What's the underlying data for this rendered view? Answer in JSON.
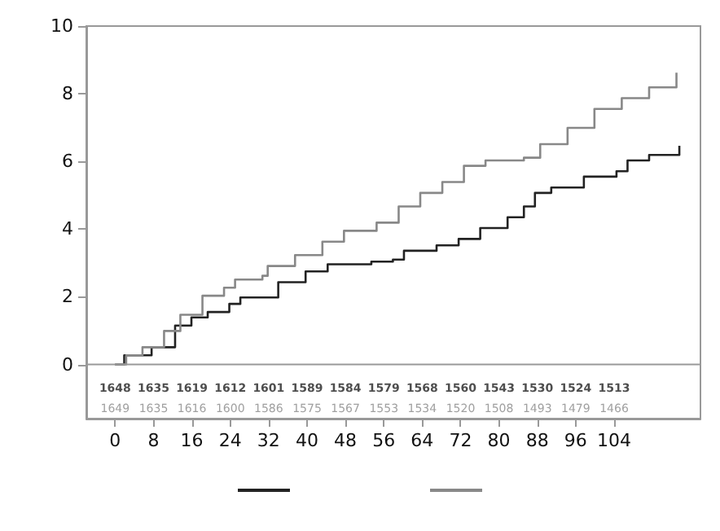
{
  "chart_data": {
    "type": "step",
    "xlim": [
      -6,
      122
    ],
    "xticks": [
      0,
      8,
      16,
      24,
      32,
      40,
      48,
      56,
      64,
      72,
      80,
      88,
      96,
      104
    ],
    "ylim": [
      -1.6,
      10
    ],
    "yticks": [
      0,
      2,
      4,
      6,
      8,
      10
    ],
    "marker": "none",
    "line_style": "solid",
    "ref_lines": [
      {
        "axis": "y",
        "value": 0,
        "color": "#999999"
      }
    ],
    "series": [
      {
        "color": "#222222",
        "x": [
          0,
          1.9,
          7.6,
          12.5,
          15.9,
          19.3,
          23.8,
          26.1,
          30.6,
          34.0,
          39.7,
          44.3,
          53.4,
          57.9,
          60.2,
          67.0,
          71.6,
          76.1,
          81.8,
          85.2,
          87.5,
          90.9,
          97.7,
          104.5,
          106.8,
          111.3,
          117.6
        ],
        "values": [
          0,
          0.27,
          0.51,
          1.15,
          1.39,
          1.55,
          1.79,
          1.98,
          1.98,
          2.43,
          2.75,
          2.96,
          3.04,
          3.1,
          3.36,
          3.52,
          3.71,
          4.03,
          4.35,
          4.67,
          5.07,
          5.23,
          5.55,
          5.71,
          6.03,
          6.19,
          6.46
        ]
      },
      {
        "color": "#888888",
        "x": [
          0,
          2.3,
          5.7,
          10.2,
          13.6,
          18.2,
          22.7,
          25.0,
          30.7,
          31.8,
          37.5,
          43.2,
          47.7,
          54.5,
          59.1,
          63.6,
          68.2,
          72.7,
          77.2,
          85.2,
          88.6,
          94.3,
          99.9,
          105.6,
          111.3,
          117.0
        ],
        "values": [
          0,
          0.27,
          0.51,
          0.99,
          1.47,
          2.03,
          2.27,
          2.51,
          2.62,
          2.91,
          3.23,
          3.63,
          3.95,
          4.19,
          4.67,
          5.07,
          5.39,
          5.87,
          6.03,
          6.11,
          6.51,
          6.99,
          7.55,
          7.87,
          8.19,
          8.62
        ]
      }
    ],
    "annotations": [
      "1648",
      "1635",
      "1619",
      "1612",
      "1601",
      "1589",
      "1584",
      "1579",
      "1568",
      "1560",
      "1543",
      "1530",
      "1524",
      "1513",
      "1649",
      "1635",
      "1616",
      "1600",
      "1586",
      "1575",
      "1567",
      "1553",
      "1534",
      "1520",
      "1508",
      "1493",
      "1479",
      "1466"
    ]
  }
}
